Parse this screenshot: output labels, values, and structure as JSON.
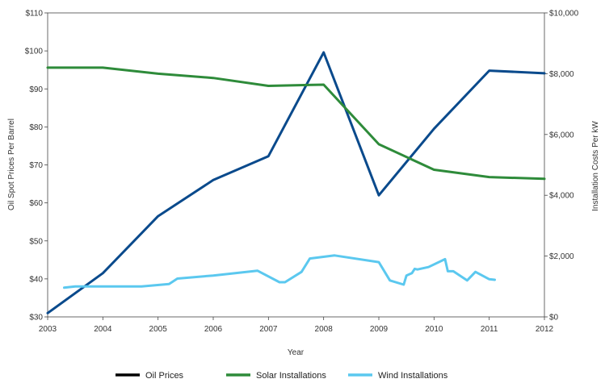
{
  "chart_data": {
    "type": "line",
    "xlabel": "Year",
    "ylabel_left": "Oil Spot Prices Per Barrel",
    "ylabel_right": "Installation Costs Per kW",
    "x_ticks": [
      "2003",
      "2004",
      "2005",
      "2006",
      "2007",
      "2008",
      "2009",
      "2010",
      "2011",
      "2012"
    ],
    "xlim": [
      2003,
      2012
    ],
    "y_left_ticks": [
      "$30",
      "$40",
      "$50",
      "$60",
      "$70",
      "$80",
      "$90",
      "$100",
      "$110"
    ],
    "y_left_lim": [
      30,
      110
    ],
    "y_right_ticks": [
      "$0",
      "$2,000",
      "$4,000",
      "$6,000",
      "$8,000",
      "$10,000"
    ],
    "y_right_lim": [
      0,
      10000
    ],
    "grid": false,
    "legend_position": "bottom",
    "series": [
      {
        "name": "Oil Prices",
        "axis": "left",
        "color": "#0a4a8c",
        "legend_color": "#000000",
        "points": [
          [
            2003,
            31
          ],
          [
            2004,
            41.5
          ],
          [
            2005,
            56.5
          ],
          [
            2006,
            66
          ],
          [
            2007,
            72.3
          ],
          [
            2008,
            99.6
          ],
          [
            2009,
            62
          ],
          [
            2010,
            79.5
          ],
          [
            2011,
            94.8
          ],
          [
            2012,
            94.1
          ]
        ]
      },
      {
        "name": "Solar Installations",
        "axis": "right",
        "color": "#2e8b3a",
        "legend_color": "#2e8b3a",
        "points": [
          [
            2003,
            8200
          ],
          [
            2004,
            8200
          ],
          [
            2005,
            8000
          ],
          [
            2006,
            7860
          ],
          [
            2007,
            7600
          ],
          [
            2008,
            7640
          ],
          [
            2009,
            5680
          ],
          [
            2010,
            4840
          ],
          [
            2011,
            4600
          ],
          [
            2012,
            4540
          ]
        ]
      },
      {
        "name": "Wind Installations",
        "axis": "right",
        "color": "#5bc8ef",
        "legend_color": "#5bc8ef",
        "points": [
          [
            2003.3,
            960
          ],
          [
            2003.5,
            1000
          ],
          [
            2004,
            1000
          ],
          [
            2004.7,
            1000
          ],
          [
            2005.2,
            1080
          ],
          [
            2005.35,
            1260
          ],
          [
            2006,
            1360
          ],
          [
            2006.8,
            1520
          ],
          [
            2007.2,
            1140
          ],
          [
            2007.3,
            1140
          ],
          [
            2007.6,
            1480
          ],
          [
            2007.75,
            1920
          ],
          [
            2008.2,
            2020
          ],
          [
            2009,
            1800
          ],
          [
            2009.2,
            1200
          ],
          [
            2009.45,
            1060
          ],
          [
            2009.5,
            1360
          ],
          [
            2009.6,
            1440
          ],
          [
            2009.65,
            1580
          ],
          [
            2009.7,
            1560
          ],
          [
            2009.9,
            1640
          ],
          [
            2010.2,
            1900
          ],
          [
            2010.25,
            1500
          ],
          [
            2010.35,
            1500
          ],
          [
            2010.6,
            1200
          ],
          [
            2010.75,
            1480
          ],
          [
            2011.0,
            1240
          ],
          [
            2011.1,
            1220
          ]
        ]
      }
    ]
  }
}
